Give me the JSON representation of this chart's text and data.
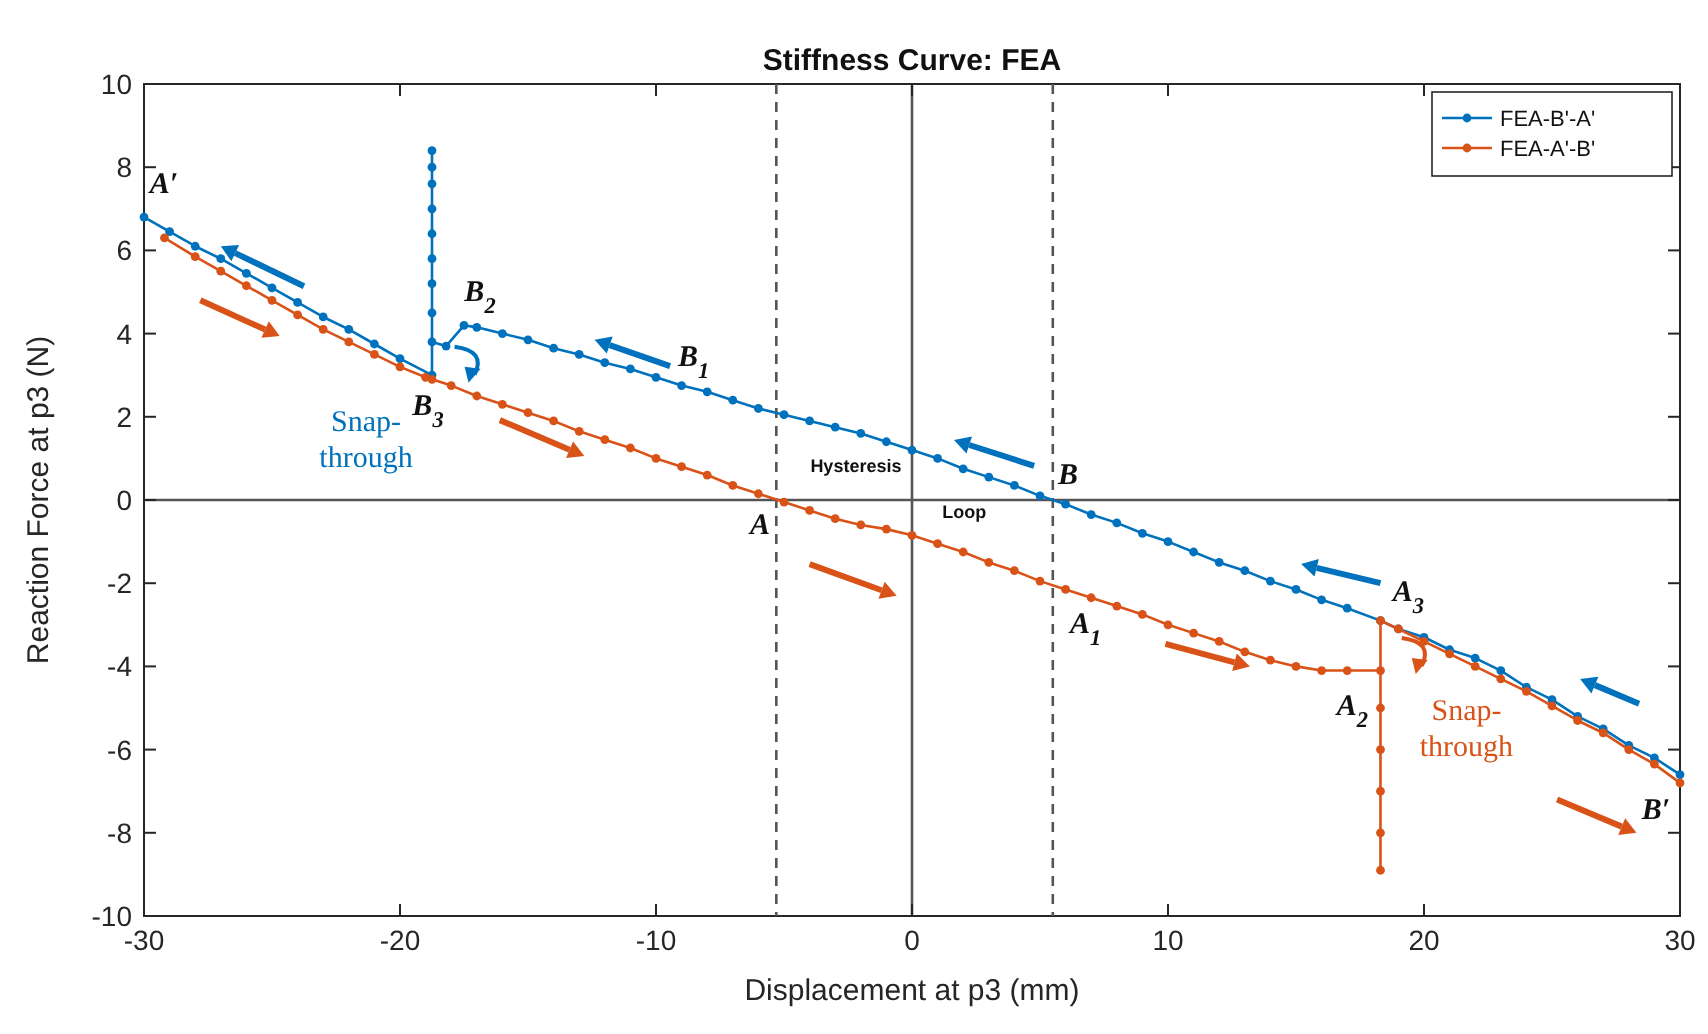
{
  "chart_data": {
    "type": "line",
    "title": "Stiffness Curve: FEA",
    "xlabel": "Displacement at p3 (mm)",
    "ylabel": "Reaction Force at p3 (N)",
    "xlim": [
      -30,
      30
    ],
    "ylim": [
      -10,
      10
    ],
    "xticks": [
      -30,
      -20,
      -10,
      0,
      10,
      20,
      30
    ],
    "yticks": [
      -10,
      -8,
      -6,
      -4,
      -2,
      0,
      2,
      4,
      6,
      8,
      10
    ],
    "grid": false,
    "legend": "top right",
    "marker": "circle",
    "line_style": "solid",
    "series": [
      {
        "name": "FEA-B'-A'",
        "color": "#0072bd",
        "x": [
          30,
          29,
          28,
          27,
          26,
          25,
          24,
          23,
          22,
          21,
          20,
          19,
          18.3,
          17,
          16,
          15,
          14,
          13,
          12,
          11,
          10,
          9,
          8,
          7,
          6,
          5,
          4,
          3,
          2,
          1,
          0,
          -1,
          -2,
          -3,
          -4,
          -5,
          -6,
          -7,
          -8,
          -9,
          -10,
          -11,
          -12,
          -13,
          -14,
          -15,
          -16,
          -17,
          -17.5,
          -18.2,
          -18.75,
          -18.75,
          -18.75,
          -18.75,
          -18.75,
          -18.75,
          -18.75,
          -18.75,
          -18.75,
          -18.75,
          -20,
          -21,
          -22,
          -23,
          -24,
          -25,
          -26,
          -27,
          -28,
          -29,
          -30
        ],
        "values": [
          -6.6,
          -6.2,
          -5.9,
          -5.5,
          -5.2,
          -4.8,
          -4.5,
          -4.1,
          -3.8,
          -3.6,
          -3.3,
          -3.1,
          -2.9,
          -2.6,
          -2.4,
          -2.15,
          -1.95,
          -1.7,
          -1.5,
          -1.25,
          -1,
          -0.8,
          -0.55,
          -0.35,
          -0.1,
          0.1,
          0.35,
          0.55,
          0.75,
          1,
          1.2,
          1.4,
          1.6,
          1.75,
          1.9,
          2.05,
          2.2,
          2.4,
          2.6,
          2.75,
          2.95,
          3.15,
          3.3,
          3.5,
          3.65,
          3.85,
          4,
          4.15,
          4.2,
          3.7,
          3.8,
          4.5,
          5.2,
          5.8,
          6.4,
          7,
          7.6,
          8,
          8.4,
          3,
          3.4,
          3.75,
          4.1,
          4.4,
          4.75,
          5.1,
          5.45,
          5.8,
          6.1,
          6.45,
          6.8
        ]
      },
      {
        "name": "FEA-A'-B'",
        "color": "#d95319",
        "x": [
          -29.2,
          -28,
          -27,
          -26,
          -25,
          -24,
          -23,
          -22,
          -21,
          -20,
          -19,
          -18.75,
          -18,
          -17,
          -16,
          -15,
          -14,
          -13,
          -12,
          -11,
          -10,
          -9,
          -8,
          -7,
          -6,
          -5,
          -4,
          -3,
          -2,
          -1,
          0,
          1,
          2,
          3,
          4,
          5,
          6,
          7,
          8,
          9,
          10,
          11,
          12,
          13,
          14,
          15,
          16,
          17,
          18.3,
          18.3,
          18.3,
          18.3,
          18.3,
          18.3,
          18.3,
          19,
          20,
          21,
          22,
          23,
          24,
          25,
          26,
          27,
          28,
          29,
          30
        ],
        "values": [
          6.3,
          5.85,
          5.5,
          5.15,
          4.8,
          4.45,
          4.1,
          3.8,
          3.5,
          3.2,
          2.95,
          2.9,
          2.75,
          2.5,
          2.3,
          2.1,
          1.9,
          1.65,
          1.45,
          1.25,
          1,
          0.8,
          0.6,
          0.35,
          0.15,
          -0.05,
          -0.25,
          -0.45,
          -0.6,
          -0.7,
          -0.85,
          -1.05,
          -1.25,
          -1.5,
          -1.7,
          -1.95,
          -2.15,
          -2.35,
          -2.55,
          -2.75,
          -3,
          -3.2,
          -3.4,
          -3.65,
          -3.85,
          -4,
          -4.1,
          -4.1,
          -4.1,
          -5,
          -6,
          -7,
          -8,
          -8.9,
          -2.9,
          -3.1,
          -3.4,
          -3.7,
          -4,
          -4.3,
          -4.6,
          -4.95,
          -5.3,
          -5.6,
          -6,
          -6.35,
          -6.8
        ]
      }
    ],
    "ref_lines": [
      {
        "axis": "x",
        "value": -5.3,
        "line_style": "dashed",
        "color": "#555555"
      },
      {
        "axis": "x",
        "value": 5.5,
        "line_style": "dashed",
        "color": "#555555"
      },
      {
        "axis": "x",
        "value": 0,
        "line_style": "solid",
        "color": "#555555"
      },
      {
        "axis": "y",
        "value": 0,
        "line_style": "solid",
        "color": "#555555"
      }
    ],
    "annotations": [
      {
        "text": "A′",
        "x": -30,
        "y": 6.8
      },
      {
        "text": "B$_{2}$",
        "x": -17.5,
        "y": 4.2
      },
      {
        "text": "B$_{3}$",
        "x": -18.75,
        "y": 3
      },
      {
        "text": "B$_{1}$",
        "x": -9,
        "y": 2.75
      },
      {
        "text": "A",
        "x": -5,
        "y": -0.05
      },
      {
        "text": "B",
        "x": 5,
        "y": 0.1
      },
      {
        "text": "A$_{1}$",
        "x": 6,
        "y": -2.15
      },
      {
        "text": "A$_{2}$",
        "x": 18.3,
        "y": -4.1
      },
      {
        "text": "A$_{3}$",
        "x": 18.3,
        "y": -2.9
      },
      {
        "text": "B′",
        "x": 30,
        "y": -6.6
      },
      {
        "text": "Snap-through",
        "x": -18.75,
        "y": 3
      },
      {
        "text": "Snap-through",
        "x": 18.3,
        "y": -5
      },
      "Hysteresis",
      "Loop"
    ]
  }
}
